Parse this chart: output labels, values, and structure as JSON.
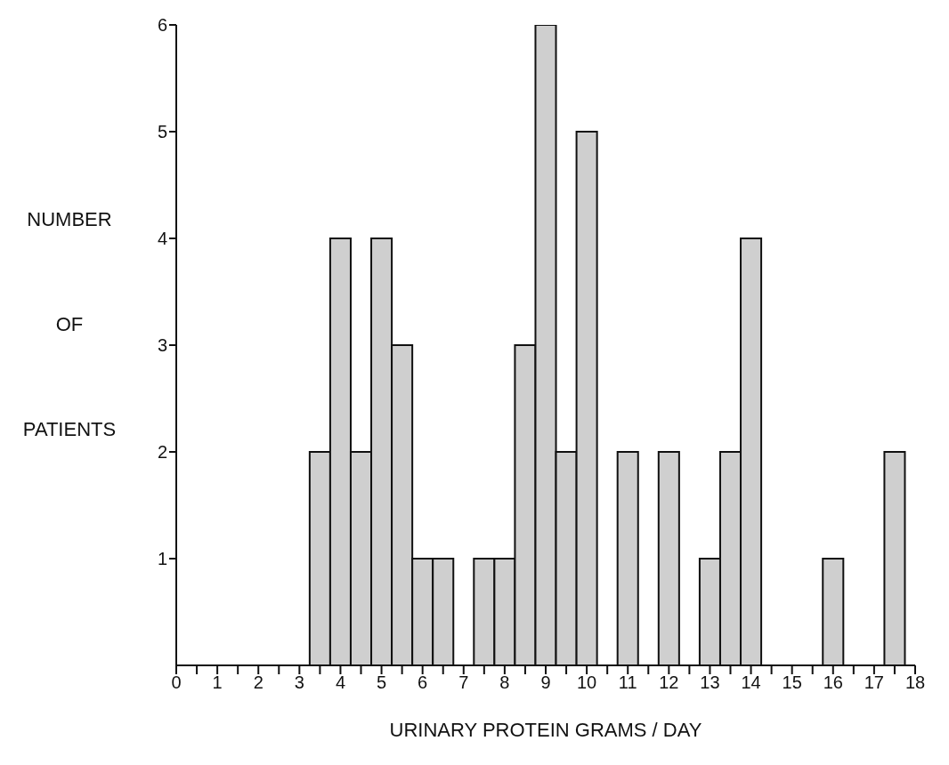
{
  "chart_data": {
    "type": "histogram",
    "xlabel": "URINARY PROTEIN GRAMS / DAY",
    "ylabel": "NUMBER OF PATIENTS",
    "bins": [
      3.25,
      3.75,
      4.25,
      4.75,
      5.25,
      5.75,
      6.25,
      6.75,
      7.25,
      7.75,
      8.25,
      8.75,
      9.25,
      9.75,
      10.25,
      10.75,
      11.25,
      11.75,
      12.25,
      12.75,
      13.25,
      13.75,
      14.25,
      14.75,
      15.25,
      15.75,
      16.25,
      16.75,
      17.25,
      17.75
    ],
    "values": [
      2,
      4,
      2,
      4,
      3,
      1,
      1,
      0,
      1,
      1,
      3,
      6,
      2,
      5,
      0,
      2,
      0,
      2,
      0,
      1,
      2,
      4,
      0,
      0,
      0,
      1,
      0,
      0,
      2
    ],
    "color": "#cfcfcf",
    "xlim": [
      0,
      18
    ],
    "xticks": [
      0,
      {
        "value": 0.5,
        "label": null
      },
      1,
      {
        "value": 1.5,
        "label": null
      },
      2,
      {
        "value": 2.5,
        "label": null
      },
      3,
      {
        "value": 3.5,
        "label": null
      },
      4,
      {
        "value": 4.5,
        "label": null
      },
      5,
      {
        "value": 5.5,
        "label": null
      },
      6,
      {
        "value": 6.5,
        "label": null
      },
      7,
      {
        "value": 7.5,
        "label": null
      },
      8,
      {
        "value": 8.5,
        "label": null
      },
      9,
      {
        "value": 9.5,
        "label": null
      },
      10,
      {
        "value": 10.5,
        "label": null
      },
      11,
      {
        "value": 11.5,
        "label": null
      },
      12,
      {
        "value": 12.5,
        "label": null
      },
      13,
      {
        "value": 13.5,
        "label": null
      },
      14,
      {
        "value": 14.5,
        "label": null
      },
      15,
      {
        "value": 15.5,
        "label": null
      },
      16,
      {
        "value": 16.5,
        "label": null
      },
      17,
      {
        "value": 17.5,
        "label": null
      },
      18
    ],
    "ylim": [
      0,
      6
    ],
    "yticks": [
      1,
      2,
      3,
      4,
      5,
      6
    ],
    "grid": false,
    "legend": false
  }
}
